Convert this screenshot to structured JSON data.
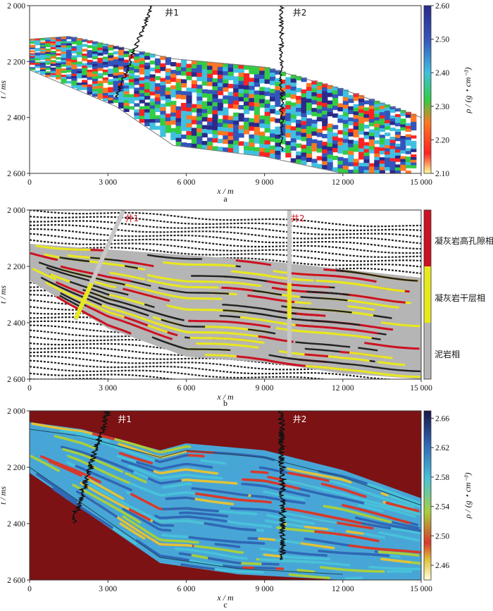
{
  "chart_data": [
    {
      "panel": "a",
      "type": "heatmap",
      "attribute": "density inversion section",
      "xlabel": "x / m",
      "ylabel": "t / ms",
      "xlim": [
        0,
        15000
      ],
      "ylim": [
        2000,
        2600
      ],
      "x_ticks": [
        0,
        3000,
        6000,
        9000,
        12000,
        15000
      ],
      "x_tick_labels": [
        "0",
        "3 000",
        "6 000",
        "9 000",
        "12 000",
        "15 000"
      ],
      "y_ticks": [
        2000,
        2200,
        2400,
        2600
      ],
      "y_tick_labels": [
        "2 000",
        "2 200",
        "2 400",
        "2 600"
      ],
      "colorbar": {
        "label": "ρ / (g・cm⁻³)",
        "min": 2.1,
        "max": 2.6,
        "ticks": [
          2.1,
          2.2,
          2.3,
          2.4,
          2.5,
          2.6
        ],
        "tick_labels": [
          "2.10",
          "2.20",
          "2.30",
          "2.40",
          "2.50",
          "2.60"
        ]
      },
      "wells": [
        {
          "name": "井1",
          "x_top": 4700,
          "x_bottom": 3300,
          "t_bottom": 2330
        },
        {
          "name": "井2",
          "x_top": 9650,
          "x_bottom": 9650,
          "t_bottom": 2520
        }
      ],
      "layer_top": [
        [
          0,
          2120
        ],
        [
          1500,
          2110
        ],
        [
          5500,
          2190
        ],
        [
          9000,
          2220
        ],
        [
          12000,
          2300
        ],
        [
          15000,
          2400
        ]
      ],
      "layer_base": [
        [
          0,
          2230
        ],
        [
          3300,
          2360
        ],
        [
          5500,
          2500
        ],
        [
          9000,
          2540
        ],
        [
          12000,
          2600
        ],
        [
          13500,
          2600
        ]
      ]
    },
    {
      "panel": "b",
      "type": "heatmap",
      "attribute": "seismic facies section",
      "xlabel": "x / m",
      "ylabel": "t / ms",
      "xlim": [
        0,
        15000
      ],
      "ylim": [
        2000,
        2600
      ],
      "x_ticks": [
        0,
        3000,
        6000,
        9000,
        12000,
        15000
      ],
      "x_tick_labels": [
        "0",
        "3 000",
        "6 000",
        "9 000",
        "12 000",
        "15 000"
      ],
      "y_ticks": [
        2000,
        2200,
        2400,
        2600
      ],
      "y_tick_labels": [
        "2 000",
        "2 200",
        "2 400",
        "2 600"
      ],
      "legend_colors": [
        "#cc1122",
        "#e8e81e",
        "#b5b5b5"
      ],
      "facies_labels": [
        "凝灰岩高孔隙相",
        "凝灰岩干层相",
        "泥岩相"
      ],
      "wells": [
        {
          "name": "井1",
          "x_top": 3600,
          "x_bottom": 1750,
          "t_bottom": 2390
        },
        {
          "name": "井2",
          "x_top": 9950,
          "x_bottom": 9950,
          "t_bottom": 2520
        }
      ]
    },
    {
      "panel": "c",
      "type": "heatmap",
      "attribute": "density inversion section",
      "xlabel": "x / m",
      "ylabel": "t / ms",
      "xlim": [
        0,
        15000
      ],
      "ylim": [
        2000,
        2600
      ],
      "x_ticks": [
        0,
        3000,
        6000,
        9000,
        12000,
        15000
      ],
      "x_tick_labels": [
        "0",
        "3 000",
        "6 000",
        "9 000",
        "12 000",
        "15 000"
      ],
      "y_ticks": [
        2000,
        2200,
        2400,
        2600
      ],
      "y_tick_labels": [
        "2 000",
        "2 200",
        "2 400",
        "2 600"
      ],
      "colorbar": {
        "label": "ρ / (g・cm⁻³)",
        "min": 2.44,
        "max": 2.67,
        "ticks": [
          2.46,
          2.5,
          2.54,
          2.58,
          2.62,
          2.66
        ],
        "tick_labels": [
          "2.46",
          "2.50",
          "2.54",
          "2.58",
          "2.62",
          "2.66"
        ]
      },
      "wells": [
        {
          "name": "井1",
          "x_top": 3000,
          "x_bottom": 1650,
          "t_bottom": 2400
        },
        {
          "name": "井2",
          "x_top": 9650,
          "x_bottom": 9700,
          "t_bottom": 2530
        }
      ],
      "layer_top": [
        [
          0,
          2040
        ],
        [
          2000,
          2065
        ],
        [
          5000,
          2140
        ],
        [
          6000,
          2115
        ],
        [
          9000,
          2140
        ],
        [
          12000,
          2210
        ],
        [
          15000,
          2310
        ]
      ],
      "layer_base": [
        [
          0,
          2220
        ],
        [
          2500,
          2380
        ],
        [
          5000,
          2540
        ],
        [
          8000,
          2580
        ],
        [
          12000,
          2600
        ]
      ]
    }
  ],
  "colors": {
    "density_scale_a": [
      "#ffff99",
      "#ff2222",
      "#ff7722",
      "#33cc44",
      "#40c0e0",
      "#3355bb",
      "#2a2a8a"
    ],
    "density_scale_c": [
      "#ffffe0",
      "#e1c23a",
      "#d8392a",
      "#a7cf3e",
      "#48c2da",
      "#2f67b5",
      "#1a1647"
    ],
    "background_c": "#7d1214"
  },
  "labels": {
    "panel_a": "a",
    "panel_b": "b",
    "panel_c": "c",
    "x_axis": "x / m",
    "y_axis": "t / ms",
    "cbar_a": "ρ / (g・cm⁻³)",
    "cbar_c": "ρ / (g・cm⁻³)",
    "facies_high_porosity": "凝灰岩高孔隙相",
    "facies_dry": "凝灰岩干层相",
    "facies_mudstone": "泥岩相",
    "well1": "井1",
    "well2": "井2"
  }
}
